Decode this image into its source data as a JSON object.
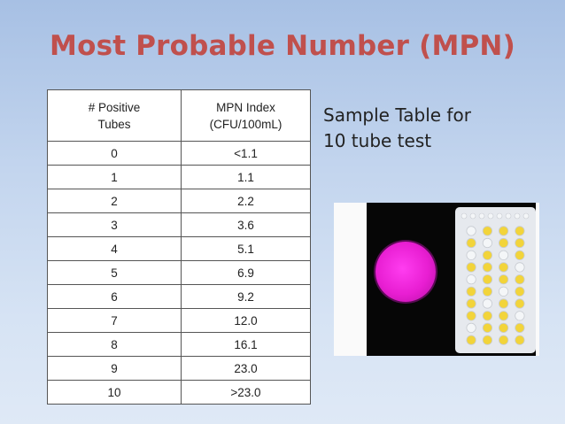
{
  "slide": {
    "title": "Most Probable Number (MPN)",
    "caption_line1": "Sample Table for",
    "caption_line2": "10 tube test"
  },
  "table": {
    "headers": [
      {
        "line1": "# Positive",
        "line2": "Tubes"
      },
      {
        "line1": "MPN Index",
        "line2": "(CFU/100mL)"
      }
    ],
    "rows": [
      [
        "0",
        "<1.1"
      ],
      [
        "1",
        "1.1"
      ],
      [
        "2",
        "2.2"
      ],
      [
        "3",
        "3.6"
      ],
      [
        "4",
        "5.1"
      ],
      [
        "5",
        "6.9"
      ],
      [
        "6",
        "9.2"
      ],
      [
        "7",
        "12.0"
      ],
      [
        "8",
        "16.1"
      ],
      [
        "9",
        "23.0"
      ],
      [
        "10",
        ">23.0"
      ]
    ]
  },
  "photo": {
    "plate_color": "#e81ed2",
    "positive_well_color": "#f2d43a",
    "negative_well_color": "#f4f6f8",
    "positive_wells": [
      [
        0,
        1,
        1,
        1
      ],
      [
        1,
        0,
        1,
        1
      ],
      [
        0,
        1,
        0,
        1
      ],
      [
        1,
        1,
        1,
        0
      ],
      [
        0,
        1,
        1,
        1
      ],
      [
        1,
        1,
        0,
        1
      ],
      [
        1,
        0,
        1,
        1
      ],
      [
        1,
        1,
        1,
        0
      ],
      [
        0,
        1,
        1,
        1
      ],
      [
        1,
        1,
        1,
        1
      ]
    ]
  }
}
